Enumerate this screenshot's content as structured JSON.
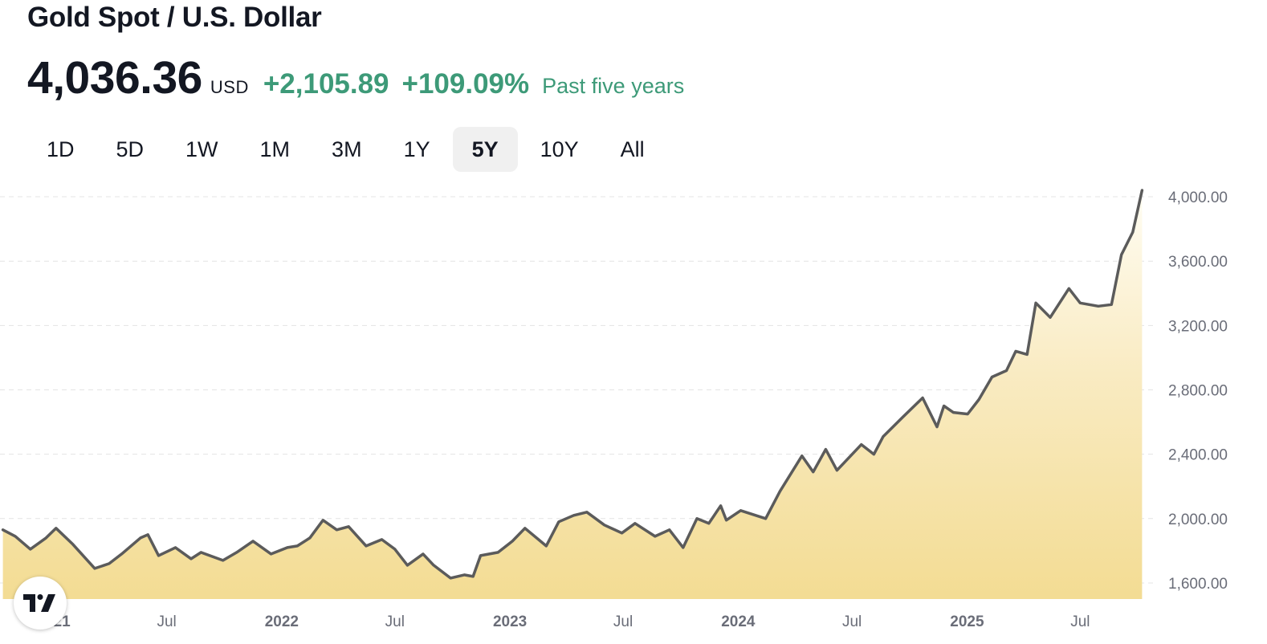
{
  "header": {
    "title": "Gold Spot / U.S. Dollar",
    "price": "4,036.36",
    "currency": "USD",
    "change": "+2,105.89",
    "change_pct": "+109.09%",
    "period_label": "Past five years"
  },
  "tabs": [
    {
      "label": "1D"
    },
    {
      "label": "5D"
    },
    {
      "label": "1W"
    },
    {
      "label": "1M"
    },
    {
      "label": "3M"
    },
    {
      "label": "1Y"
    },
    {
      "label": "5Y",
      "active": true
    },
    {
      "label": "10Y"
    },
    {
      "label": "All"
    }
  ],
  "colors": {
    "line": "#5b5b5b",
    "fill_top": "#fffdf3",
    "fill_bottom": "#f3dc93",
    "positive": "#3d9a78"
  },
  "logo": {
    "icon": "tradingview-logo-icon",
    "text": "TV"
  },
  "chart_data": {
    "type": "area",
    "title": "Gold Spot / U.S. Dollar",
    "xlabel": "",
    "ylabel": "",
    "grid": true,
    "y_axis_position": "right",
    "ylim": [
      1500,
      4100
    ],
    "y_ticks": [
      "1,600.00",
      "2,000.00",
      "2,400.00",
      "2,800.00",
      "3,200.00",
      "3,600.00",
      "4,000.00"
    ],
    "y_tick_values": [
      1600,
      2000,
      2400,
      2800,
      3200,
      3600,
      4000
    ],
    "xlim": [
      "2020-10-10",
      "2025-10-10"
    ],
    "x_ticks": [
      {
        "label": "2021",
        "date": "2021-01-01",
        "bold": true
      },
      {
        "label": "Jul",
        "date": "2021-07-01",
        "bold": false
      },
      {
        "label": "2022",
        "date": "2022-01-01",
        "bold": true
      },
      {
        "label": "Jul",
        "date": "2022-07-01",
        "bold": false
      },
      {
        "label": "2023",
        "date": "2023-01-01",
        "bold": true
      },
      {
        "label": "Jul",
        "date": "2023-07-01",
        "bold": false
      },
      {
        "label": "2024",
        "date": "2024-01-01",
        "bold": true
      },
      {
        "label": "Jul",
        "date": "2024-07-01",
        "bold": false
      },
      {
        "label": "2025",
        "date": "2025-01-01",
        "bold": true
      },
      {
        "label": "Jul",
        "date": "2025-07-01",
        "bold": false
      }
    ],
    "series": [
      {
        "x": [
          "2020-10-12",
          "2020-11-01",
          "2020-11-25",
          "2020-12-20",
          "2021-01-05",
          "2021-02-01",
          "2021-03-08",
          "2021-03-31",
          "2021-04-20",
          "2021-05-20",
          "2021-06-01",
          "2021-06-18",
          "2021-07-15",
          "2021-08-09",
          "2021-08-25",
          "2021-09-29",
          "2021-10-21",
          "2021-11-16",
          "2021-12-15",
          "2022-01-10",
          "2022-01-26",
          "2022-02-15",
          "2022-03-08",
          "2022-03-30",
          "2022-04-18",
          "2022-05-16",
          "2022-06-10",
          "2022-07-01",
          "2022-07-21",
          "2022-08-15",
          "2022-09-01",
          "2022-09-28",
          "2022-10-20",
          "2022-11-03",
          "2022-11-15",
          "2022-12-13",
          "2023-01-05",
          "2023-01-25",
          "2023-02-28",
          "2023-03-20",
          "2023-04-13",
          "2023-05-04",
          "2023-06-01",
          "2023-06-29",
          "2023-07-20",
          "2023-08-21",
          "2023-09-13",
          "2023-10-05",
          "2023-10-27",
          "2023-11-15",
          "2023-12-04",
          "2023-12-13",
          "2024-01-05",
          "2024-02-14",
          "2024-03-08",
          "2024-04-12",
          "2024-04-30",
          "2024-05-20",
          "2024-06-07",
          "2024-07-16",
          "2024-08-05",
          "2024-08-20",
          "2024-09-20",
          "2024-10-22",
          "2024-11-14",
          "2024-11-25",
          "2024-12-10",
          "2025-01-02",
          "2025-01-20",
          "2025-02-10",
          "2025-03-05",
          "2025-03-20",
          "2025-04-07",
          "2025-04-21",
          "2025-05-14",
          "2025-06-13",
          "2025-07-01",
          "2025-07-30",
          "2025-08-20",
          "2025-09-05",
          "2025-09-23",
          "2025-10-08"
        ],
        "y": [
          1930,
          1890,
          1810,
          1880,
          1940,
          1840,
          1690,
          1720,
          1780,
          1880,
          1900,
          1770,
          1820,
          1750,
          1790,
          1740,
          1790,
          1860,
          1780,
          1820,
          1830,
          1880,
          1990,
          1930,
          1950,
          1830,
          1870,
          1810,
          1710,
          1780,
          1710,
          1630,
          1650,
          1640,
          1770,
          1790,
          1860,
          1940,
          1830,
          1980,
          2020,
          2040,
          1960,
          1910,
          1970,
          1890,
          1930,
          1820,
          2000,
          1970,
          2080,
          1990,
          2050,
          2000,
          2170,
          2390,
          2290,
          2430,
          2300,
          2460,
          2400,
          2510,
          2630,
          2750,
          2570,
          2700,
          2660,
          2650,
          2740,
          2880,
          2920,
          3040,
          3020,
          3340,
          3250,
          3430,
          3340,
          3320,
          3330,
          3640,
          3780,
          4040
        ]
      }
    ],
    "last_value": 4036.36
  }
}
